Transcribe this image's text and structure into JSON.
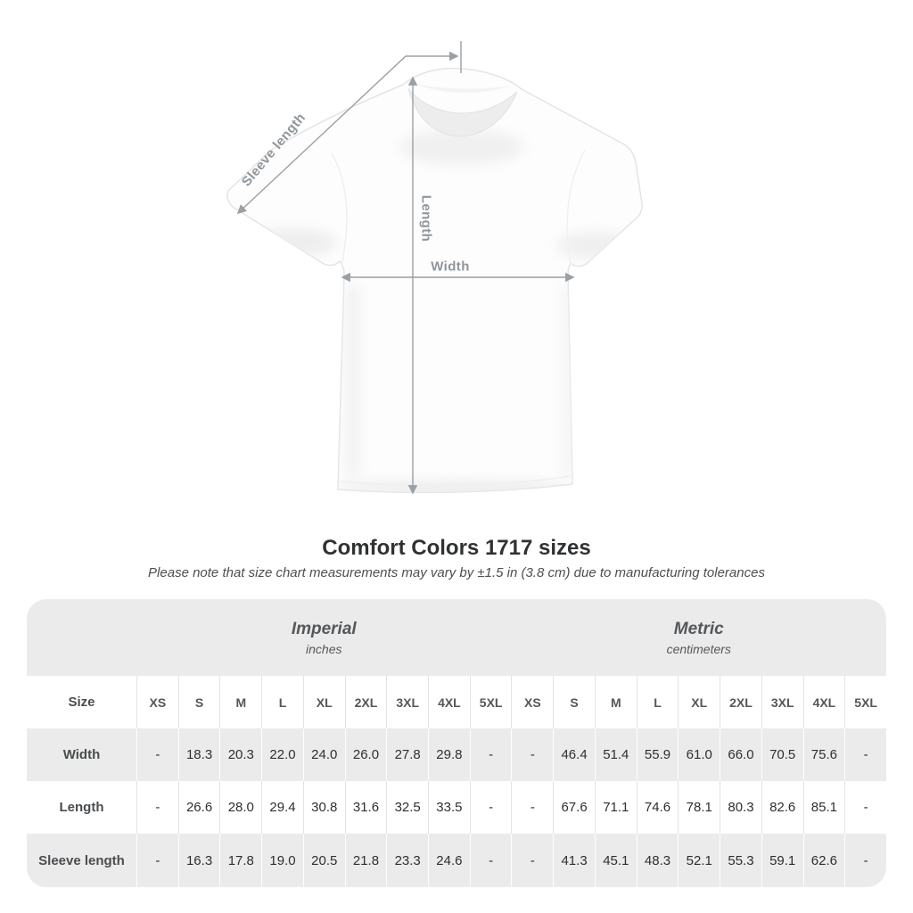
{
  "diagram": {
    "labels": {
      "sleeve_length": "Sleeve length",
      "length": "Length",
      "width": "Width"
    }
  },
  "title": "Comfort Colors 1717 sizes",
  "subtitle": "Please note that size chart measurements may vary by ±1.5 in (3.8 cm) due to manufacturing tolerances",
  "table": {
    "unit_groups": [
      {
        "name": "Imperial",
        "unit": "inches"
      },
      {
        "name": "Metric",
        "unit": "centimeters"
      }
    ],
    "size_label": "Size",
    "sizes": [
      "XS",
      "S",
      "M",
      "L",
      "XL",
      "2XL",
      "3XL",
      "4XL",
      "5XL"
    ],
    "rows": [
      {
        "label": "Width",
        "imperial": [
          "-",
          "18.3",
          "20.3",
          "22.0",
          "24.0",
          "26.0",
          "27.8",
          "29.8",
          "-"
        ],
        "metric": [
          "-",
          "46.4",
          "51.4",
          "55.9",
          "61.0",
          "66.0",
          "70.5",
          "75.6",
          "-"
        ]
      },
      {
        "label": "Length",
        "imperial": [
          "-",
          "26.6",
          "28.0",
          "29.4",
          "30.8",
          "31.6",
          "32.5",
          "33.5",
          "-"
        ],
        "metric": [
          "-",
          "67.6",
          "71.1",
          "74.6",
          "78.1",
          "80.3",
          "82.6",
          "85.1",
          "-"
        ]
      },
      {
        "label": "Sleeve length",
        "imperial": [
          "-",
          "16.3",
          "17.8",
          "19.0",
          "20.5",
          "21.8",
          "23.3",
          "24.6",
          "-"
        ],
        "metric": [
          "-",
          "41.3",
          "45.1",
          "48.3",
          "52.1",
          "55.3",
          "59.1",
          "62.6",
          "-"
        ]
      }
    ]
  },
  "colors": {
    "table_band": "#ebebeb",
    "annotation": "#9aa0a4",
    "title_text": "#2f3133"
  }
}
